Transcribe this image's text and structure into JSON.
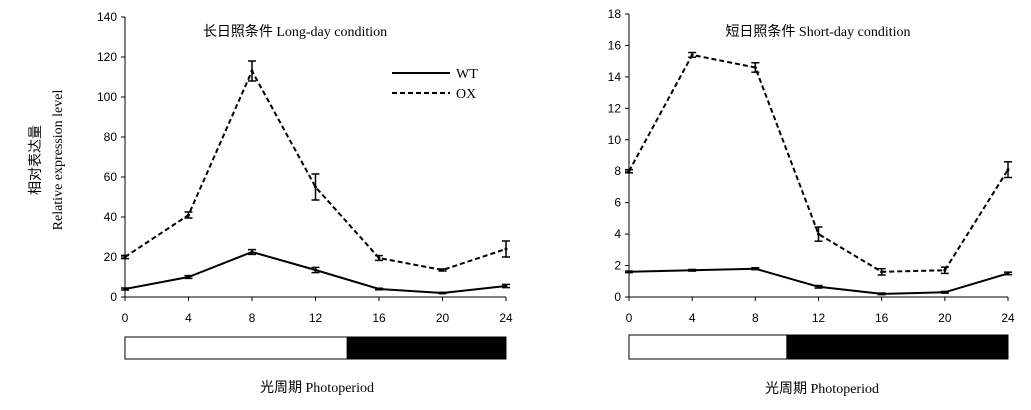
{
  "ylabel_cn": "相对表达量",
  "ylabel_en": "Relative expression level",
  "chart_data": [
    {
      "type": "line",
      "title": "长日照条件 Long-day condition",
      "xlabel": "光周期  Photoperiod",
      "ylabel": "相对表达量 Relative expression level",
      "x": [
        0,
        4,
        8,
        12,
        16,
        20,
        24
      ],
      "xlim": [
        0,
        24
      ],
      "ylim": [
        0,
        140
      ],
      "yticks": [
        0,
        20,
        40,
        60,
        80,
        100,
        120,
        140
      ],
      "xticks": [
        0,
        4,
        8,
        12,
        16,
        20,
        24
      ],
      "grid": false,
      "legend": "top-right",
      "photoperiod": {
        "light": [
          0,
          14
        ],
        "dark": [
          14,
          24
        ]
      },
      "series": [
        {
          "name": "WT",
          "style": "solid",
          "values": [
            4,
            10,
            22.5,
            13.5,
            4,
            2,
            5.5
          ],
          "errors": [
            0.5,
            0.7,
            1.2,
            1.3,
            0.4,
            0.3,
            0.8
          ]
        },
        {
          "name": "OX",
          "style": "dashed",
          "values": [
            20,
            41,
            113,
            55,
            19.5,
            13.5,
            24
          ],
          "errors": [
            0.8,
            1.5,
            5,
            6.5,
            1.2,
            0.5,
            4
          ]
        }
      ]
    },
    {
      "type": "line",
      "title": "短日照条件 Short-day condition",
      "xlabel": "光周期  Photoperiod",
      "ylabel": "",
      "x": [
        0,
        4,
        8,
        12,
        16,
        20,
        24
      ],
      "xlim": [
        0,
        24
      ],
      "ylim": [
        0,
        18
      ],
      "yticks": [
        0,
        2,
        4,
        6,
        8,
        10,
        12,
        14,
        16,
        18
      ],
      "xticks": [
        0,
        4,
        8,
        12,
        16,
        20,
        24
      ],
      "grid": false,
      "photoperiod": {
        "light": [
          0,
          10
        ],
        "dark": [
          10,
          24
        ]
      },
      "series": [
        {
          "name": "WT",
          "style": "solid",
          "values": [
            1.6,
            1.7,
            1.8,
            0.65,
            0.2,
            0.3,
            1.5
          ],
          "errors": [
            0.05,
            0.05,
            0.06,
            0.08,
            0.05,
            0.05,
            0.08
          ]
        },
        {
          "name": "OX",
          "style": "dashed",
          "values": [
            8,
            15.4,
            14.6,
            4,
            1.6,
            1.7,
            8.1
          ],
          "errors": [
            0.1,
            0.15,
            0.3,
            0.45,
            0.2,
            0.2,
            0.5
          ]
        }
      ]
    }
  ]
}
